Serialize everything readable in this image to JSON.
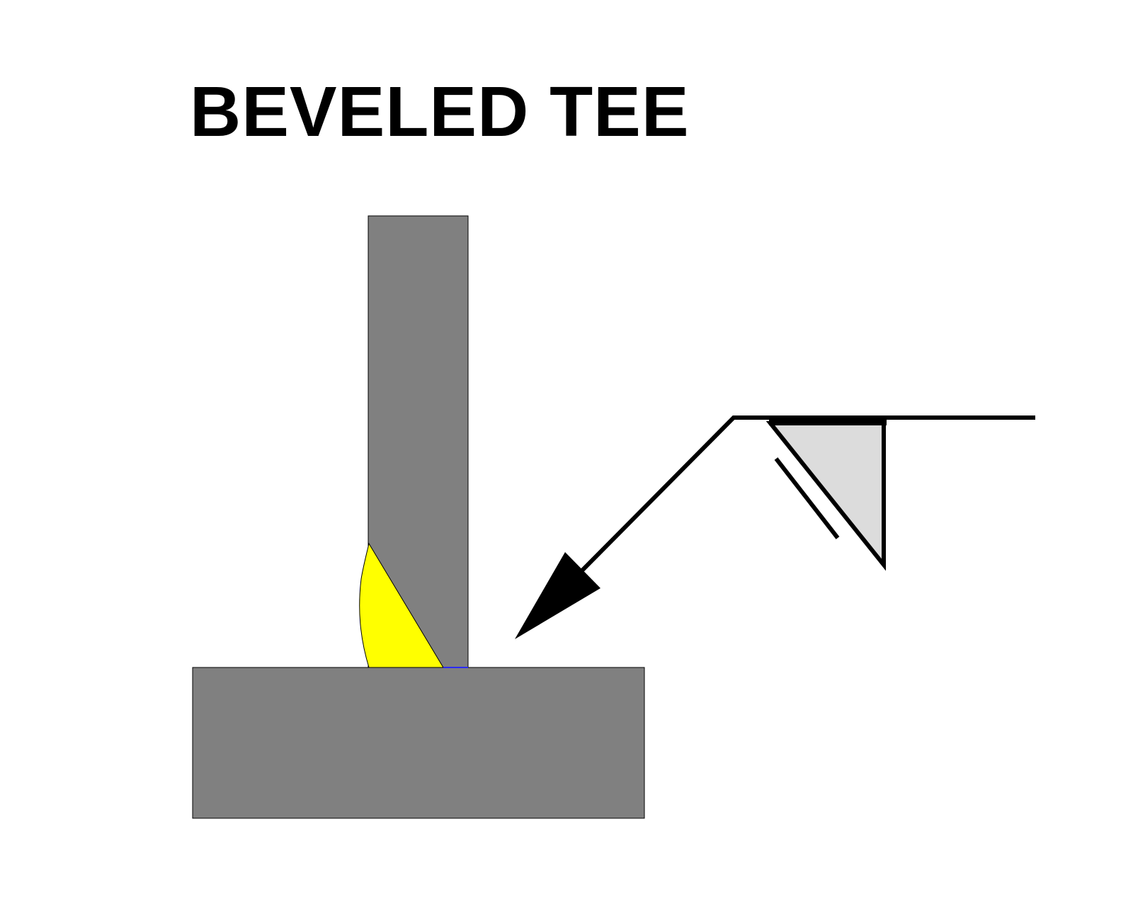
{
  "title": "BEVELED TEE",
  "colors": {
    "background": "#ffffff",
    "plate": "#808080",
    "weld_bead": "#ffff00",
    "weld_symbol_fill": "#dcdcdc",
    "line": "#000000"
  },
  "icons": {
    "weld_symbol": "bevel-groove-weld-symbol-icon",
    "arrow_head": "arrowhead-icon"
  }
}
